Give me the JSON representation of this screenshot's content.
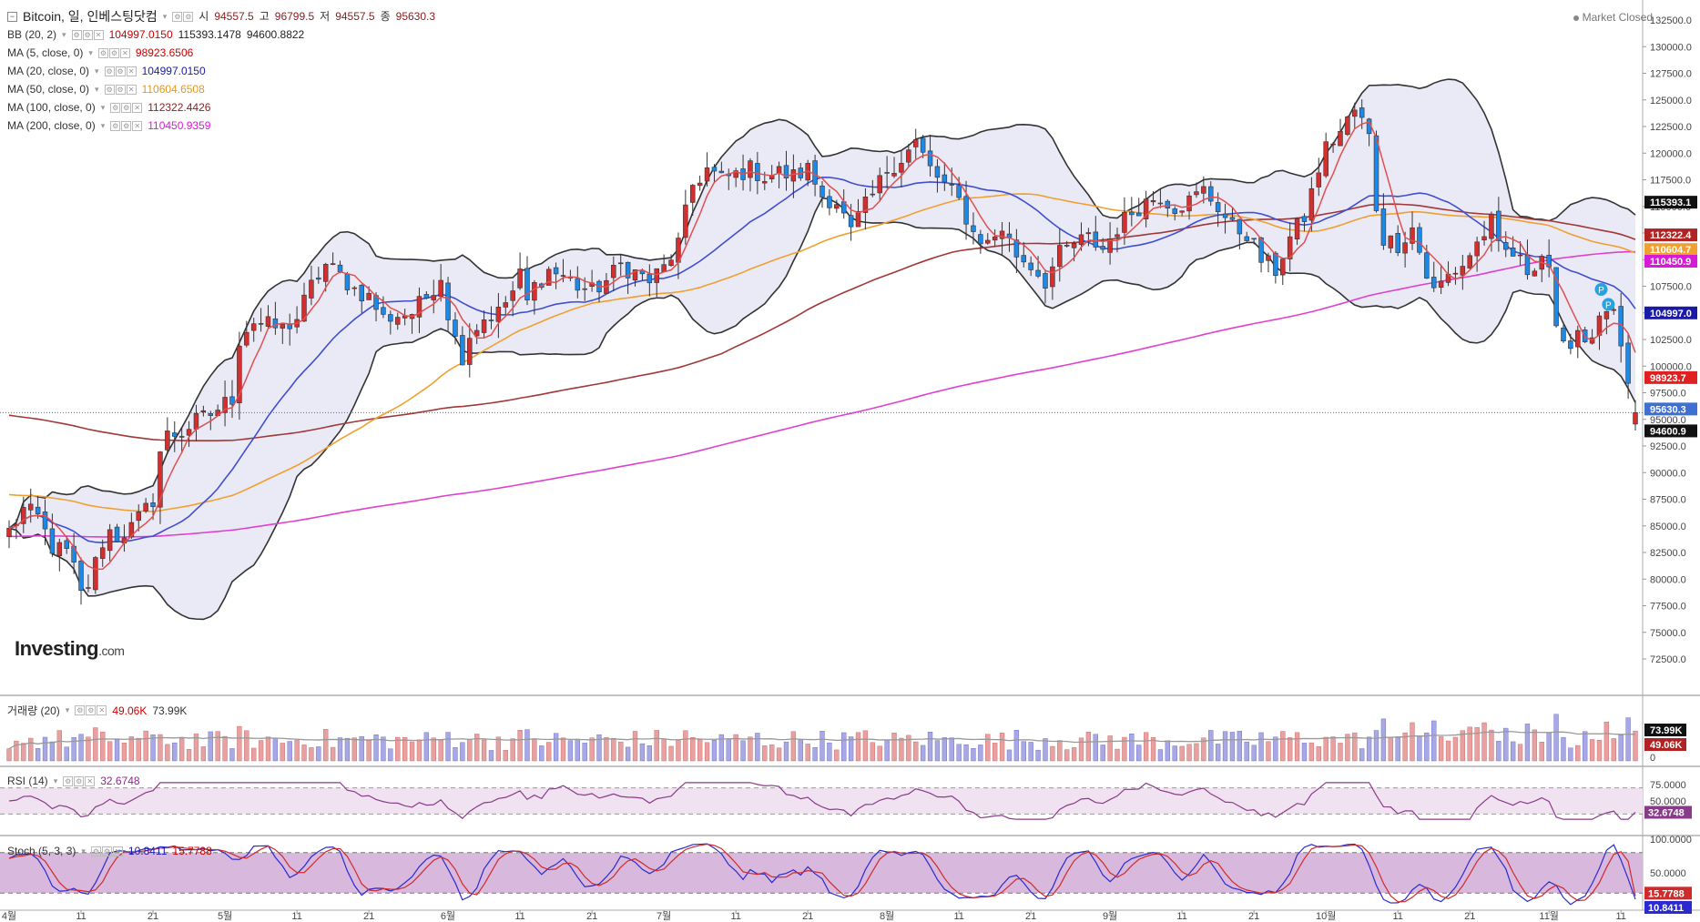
{
  "header": {
    "symbol": "Bitcoin, 일, 인베스팅닷컴",
    "open_label": "시",
    "open": "94557.5",
    "high_label": "고",
    "high": "96799.5",
    "low_label": "저",
    "low": "94557.5",
    "close_label": "종",
    "close": "95630.3",
    "market_status": "Market Closed"
  },
  "indicators": [
    {
      "label": "BB (20, 2)",
      "values": [
        "104997.0150",
        "115393.1478",
        "94600.8822"
      ],
      "color": "#cc0000"
    },
    {
      "label": "MA (5, close, 0)",
      "values": [
        "98923.6506"
      ],
      "color": "#cc0000"
    },
    {
      "label": "MA (20, close, 0)",
      "values": [
        "104997.0150"
      ],
      "color": "#1a1aa6"
    },
    {
      "label": "MA (50, close, 0)",
      "values": [
        "110604.6508"
      ],
      "color": "#e6961e"
    },
    {
      "label": "MA (100, close, 0)",
      "values": [
        "112322.4426"
      ],
      "color": "#8b2020"
    },
    {
      "label": "MA (200, close, 0)",
      "values": [
        "110450.9359"
      ],
      "color": "#d61ad6"
    }
  ],
  "brand": {
    "name": "Investing",
    "domain": ".com"
  },
  "colors": {
    "up": "#d32f2f",
    "down": "#1e88e5",
    "bb_fill": "#e6e6f5",
    "ma5": "#e05050",
    "ma20": "#3f4fd0",
    "ma50": "#f0a030",
    "ma100": "#a03838",
    "ma200": "#e040d0"
  },
  "price_axis_ticks": [
    "132500.0",
    "130000.0",
    "127500.0",
    "125000.0",
    "122500.0",
    "120000.0",
    "117500.0",
    "115000.0",
    "112500.0",
    "110000.0",
    "107500.0",
    "105000.0",
    "102500.0",
    "100000.0",
    "97500.0",
    "95000.0",
    "92500.0",
    "90000.0",
    "87500.0",
    "85000.0",
    "82500.0",
    "80000.0",
    "77500.0",
    "75000.0",
    "72500.0"
  ],
  "price_tags": [
    {
      "text": "115393.1",
      "value": 115393.1,
      "bg": "#111111"
    },
    {
      "text": "112322.4",
      "value": 112322.4,
      "bg": "#b22222"
    },
    {
      "text": "110604.7",
      "value": 110604.7,
      "bg": "#f0a030"
    },
    {
      "text": "110450.9",
      "value": 110450.9,
      "bg": "#d61ad6"
    },
    {
      "text": "104997.0",
      "value": 104997.0,
      "bg": "#1a1aa6"
    },
    {
      "text": "98923.7",
      "value": 98923.7,
      "bg": "#e02020"
    },
    {
      "text": "95630.3",
      "value": 95630.3,
      "bg": "#3f6fd0"
    },
    {
      "text": "94600.9",
      "value": 94600.9,
      "bg": "#111111"
    }
  ],
  "x_axis_ticks": [
    {
      "label": "4월",
      "day": 0
    },
    {
      "label": "11",
      "day": 10
    },
    {
      "label": "21",
      "day": 20
    },
    {
      "label": "5월",
      "day": 30
    },
    {
      "label": "11",
      "day": 40
    },
    {
      "label": "21",
      "day": 50
    },
    {
      "label": "6월",
      "day": 61
    },
    {
      "label": "11",
      "day": 71
    },
    {
      "label": "21",
      "day": 81
    },
    {
      "label": "7월",
      "day": 91
    },
    {
      "label": "11",
      "day": 101
    },
    {
      "label": "21",
      "day": 111
    },
    {
      "label": "8월",
      "day": 122
    },
    {
      "label": "11",
      "day": 132
    },
    {
      "label": "21",
      "day": 142
    },
    {
      "label": "9월",
      "day": 153
    },
    {
      "label": "11",
      "day": 163
    },
    {
      "label": "21",
      "day": 173
    },
    {
      "label": "10월",
      "day": 183
    },
    {
      "label": "11",
      "day": 193
    },
    {
      "label": "21",
      "day": 203
    },
    {
      "label": "11월",
      "day": 214
    },
    {
      "label": "11",
      "day": 224
    }
  ],
  "volume": {
    "label": "거래량 (20)",
    "values": [
      "49.06K",
      "73.99K"
    ],
    "axis_ticks": [
      "73.99K",
      "49.06K",
      "0"
    ]
  },
  "rsi": {
    "label": "RSI (14)",
    "value": "32.6748",
    "axis_ticks": [
      "75.0000",
      "50.0000"
    ],
    "current_tag": "32.6748",
    "upper": 70,
    "lower": 30
  },
  "stoch": {
    "label": "Stoch (5, 3, 3)",
    "k": "10.8411",
    "d": "15.7788",
    "axis_ticks": [
      "100.0000",
      "50.0000"
    ],
    "tags": [
      "15.7788",
      "10.8411"
    ],
    "upper": 80,
    "lower": 20
  },
  "chart_data": {
    "type": "candlestick",
    "x_unit": "trading day index, day 0 = 4월 1",
    "price_range": [
      71000,
      134000
    ],
    "close_anchors": [
      [
        0,
        84500
      ],
      [
        2,
        86500
      ],
      [
        4,
        85800
      ],
      [
        6,
        83000
      ],
      [
        8,
        82500
      ],
      [
        9,
        81000
      ],
      [
        10,
        78500
      ],
      [
        11,
        79500
      ],
      [
        12,
        81500
      ],
      [
        13,
        83500
      ],
      [
        14,
        84500
      ],
      [
        15,
        84000
      ],
      [
        17,
        84800
      ],
      [
        19,
        86500
      ],
      [
        20,
        87500
      ],
      [
        21,
        92000
      ],
      [
        22,
        93500
      ],
      [
        24,
        93800
      ],
      [
        26,
        94800
      ],
      [
        28,
        95500
      ],
      [
        30,
        96500
      ],
      [
        31,
        97000
      ],
      [
        32,
        102500
      ],
      [
        33,
        103500
      ],
      [
        34,
        104200
      ],
      [
        36,
        103800
      ],
      [
        38,
        103500
      ],
      [
        40,
        104500
      ],
      [
        42,
        107500
      ],
      [
        44,
        109500
      ],
      [
        46,
        108500
      ],
      [
        48,
        107200
      ],
      [
        50,
        106500
      ],
      [
        51,
        105500
      ],
      [
        52,
        104500
      ],
      [
        54,
        104800
      ],
      [
        56,
        105000
      ],
      [
        58,
        106500
      ],
      [
        60,
        108500
      ],
      [
        61,
        105000
      ],
      [
        62,
        102500
      ],
      [
        63,
        101000
      ],
      [
        64,
        103000
      ],
      [
        66,
        104500
      ],
      [
        68,
        105000
      ],
      [
        70,
        107000
      ],
      [
        71,
        108500
      ],
      [
        72,
        106000
      ],
      [
        73,
        107500
      ],
      [
        75,
        109000
      ],
      [
        77,
        108500
      ],
      [
        79,
        107500
      ],
      [
        81,
        107000
      ],
      [
        83,
        108000
      ],
      [
        85,
        109500
      ],
      [
        87,
        108800
      ],
      [
        89,
        108000
      ],
      [
        91,
        109200
      ],
      [
        93,
        111500
      ],
      [
        95,
        117000
      ],
      [
        97,
        118500
      ],
      [
        99,
        117500
      ],
      [
        101,
        118000
      ],
      [
        103,
        118500
      ],
      [
        105,
        117800
      ],
      [
        107,
        118200
      ],
      [
        109,
        117800
      ],
      [
        111,
        118500
      ],
      [
        113,
        116000
      ],
      [
        115,
        115500
      ],
      [
        117,
        112500
      ],
      [
        118,
        114000
      ],
      [
        120,
        116000
      ],
      [
        122,
        118500
      ],
      [
        124,
        119500
      ],
      [
        126,
        121000
      ],
      [
        128,
        118500
      ],
      [
        130,
        117000
      ],
      [
        132,
        115500
      ],
      [
        134,
        112500
      ],
      [
        136,
        111500
      ],
      [
        138,
        113000
      ],
      [
        140,
        110500
      ],
      [
        142,
        109500
      ],
      [
        144,
        108000
      ],
      [
        146,
        110500
      ],
      [
        148,
        111500
      ],
      [
        150,
        112000
      ],
      [
        152,
        111000
      ],
      [
        154,
        113000
      ],
      [
        156,
        114500
      ],
      [
        158,
        115500
      ],
      [
        160,
        116000
      ],
      [
        162,
        115000
      ],
      [
        164,
        115500
      ],
      [
        166,
        116500
      ],
      [
        168,
        115000
      ],
      [
        170,
        113000
      ],
      [
        172,
        112500
      ],
      [
        174,
        110000
      ],
      [
        176,
        109000
      ],
      [
        178,
        112000
      ],
      [
        180,
        114000
      ],
      [
        182,
        118500
      ],
      [
        183,
        120500
      ],
      [
        185,
        122000
      ],
      [
        187,
        124000
      ],
      [
        188,
        123000
      ],
      [
        189,
        121500
      ],
      [
        190,
        115000
      ],
      [
        191,
        112000
      ],
      [
        193,
        111500
      ],
      [
        195,
        113000
      ],
      [
        197,
        108500
      ],
      [
        198,
        107000
      ],
      [
        200,
        108500
      ],
      [
        202,
        109500
      ],
      [
        204,
        111500
      ],
      [
        206,
        113500
      ],
      [
        207,
        111000
      ],
      [
        209,
        110500
      ],
      [
        211,
        109000
      ],
      [
        213,
        110500
      ],
      [
        214,
        109500
      ],
      [
        215,
        103000
      ],
      [
        216,
        101500
      ],
      [
        218,
        103500
      ],
      [
        219,
        102500
      ],
      [
        221,
        104000
      ],
      [
        222,
        105500
      ],
      [
        223,
        104500
      ],
      [
        224,
        101500
      ],
      [
        225,
        97500
      ],
      [
        226,
        95500
      ]
    ],
    "last_candle": {
      "open": 94557.5,
      "high": 96799.5,
      "low": 94557.5,
      "close": 95630.3
    }
  }
}
